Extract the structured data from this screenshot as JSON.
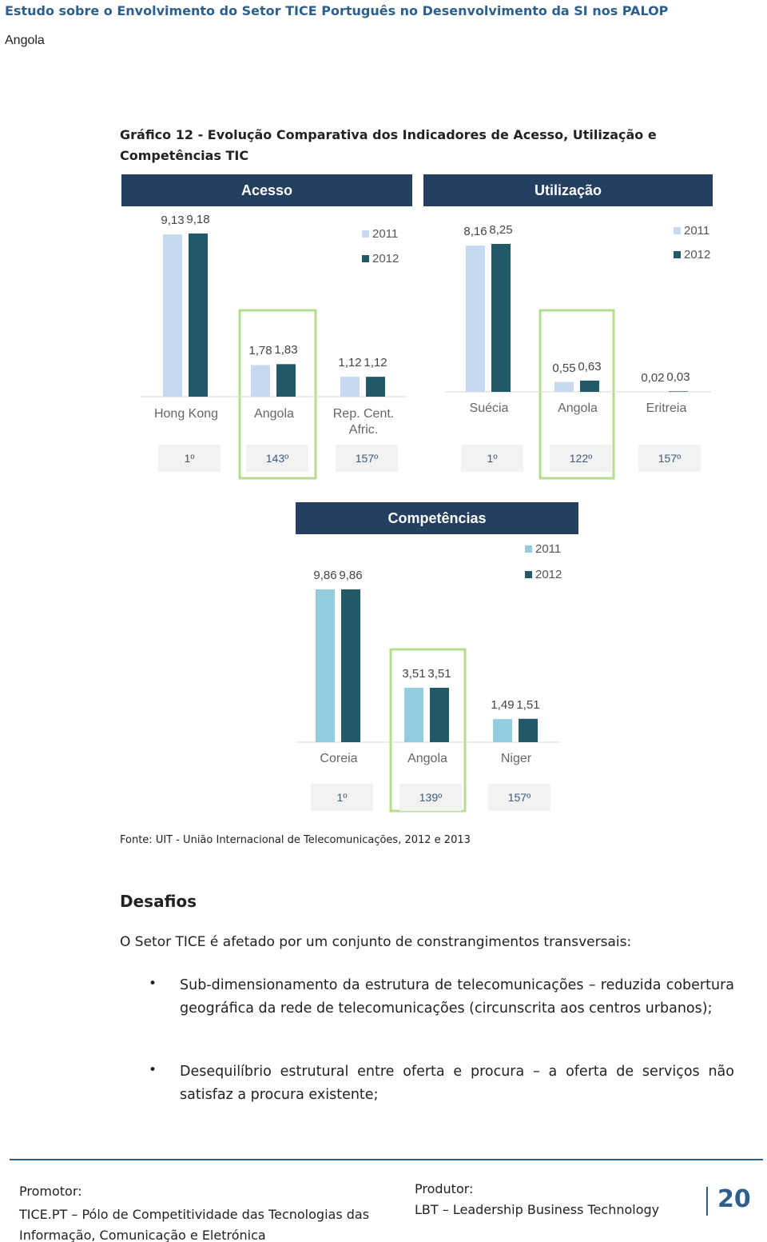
{
  "header": {
    "title": "Estudo sobre o Envolvimento do Setor TICE Português no Desenvolvimento da SI nos PALOP",
    "subtitle": "Angola"
  },
  "figure_title": "Gráfico 12 - Evolução Comparativa dos Indicadores de Acesso, Utilização e Competências TIC",
  "chart_data": [
    {
      "type": "bar",
      "title": "Acesso",
      "categories": [
        "Hong Kong",
        "Angola",
        "Rep. Cent. Afric."
      ],
      "series": [
        {
          "name": "2011",
          "color": "#c6d9f1",
          "values": [
            9.13,
            1.78,
            1.12
          ],
          "value_labels": [
            "9,13",
            "1,78",
            "1,12"
          ]
        },
        {
          "name": "2012",
          "color": "#215968",
          "values": [
            9.18,
            1.83,
            1.12
          ],
          "value_labels": [
            "9,18",
            "1,83",
            "1,12"
          ]
        }
      ],
      "ranks": [
        "1º",
        "143º",
        "157º"
      ],
      "highlight": "Angola"
    },
    {
      "type": "bar",
      "title": "Utilização",
      "categories": [
        "Suécia",
        "Angola",
        "Eritreia"
      ],
      "series": [
        {
          "name": "2011",
          "color": "#c6d9f1",
          "values": [
            8.16,
            0.55,
            0.02
          ],
          "value_labels": [
            "8,16",
            "0,55",
            "0,02"
          ]
        },
        {
          "name": "2012",
          "color": "#215968",
          "values": [
            8.25,
            0.63,
            0.03
          ],
          "value_labels": [
            "8,25",
            "0,63",
            "0,03"
          ]
        }
      ],
      "ranks": [
        "1º",
        "122º",
        "157º"
      ],
      "highlight": "Angola"
    },
    {
      "type": "bar",
      "title": "Competências",
      "categories": [
        "Coreia",
        "Angola",
        "Niger"
      ],
      "series": [
        {
          "name": "2011",
          "color": "#93cddd",
          "values": [
            9.86,
            3.51,
            1.49
          ],
          "value_labels": [
            "9,86",
            "3,51",
            "1,49"
          ]
        },
        {
          "name": "2012",
          "color": "#215968",
          "values": [
            9.86,
            3.51,
            1.51
          ],
          "value_labels": [
            "9,86",
            "3,51",
            "1,51"
          ]
        }
      ],
      "ranks": [
        "1º",
        "139º",
        "157º"
      ],
      "highlight": "Angola"
    }
  ],
  "source": "Fonte: UIT - União Internacional de Telecomunicações, 2012 e 2013",
  "section": {
    "heading": "Desafios",
    "intro": "O Setor TICE é afetado por um conjunto de constrangimentos transversais:",
    "bullets": [
      "Sub-dimensionamento da estrutura de telecomunicações – reduzida cobertura geográfica da rede de telecomunicações (circunscrita aos centros urbanos);",
      "Desequilíbrio estrutural entre oferta e procura – a oferta de serviços não satisfaz a procura existente;"
    ]
  },
  "footer": {
    "promoter_label": "Promotor:",
    "promoter": "TICE.PT – Pólo de Competitividade das Tecnologias das Informação, Comunicação e Eletrónica",
    "producer_label": "Produtor:",
    "producer": "LBT – Leadership Business Technology",
    "page": "20"
  }
}
